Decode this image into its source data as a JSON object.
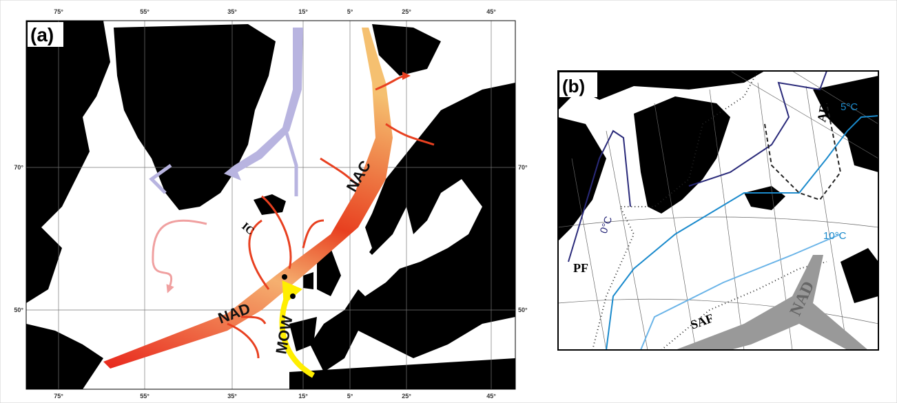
{
  "panel_a": {
    "label": "(a)",
    "longitudes": [
      "75°",
      "55°",
      "35°",
      "15°",
      "5°",
      "25°",
      "45°"
    ],
    "latitudes": [
      "70°",
      "50°"
    ],
    "currents": {
      "nac": "NAC",
      "nad": "NAD",
      "mow": "MOW",
      "ic": "IC"
    }
  },
  "panel_b": {
    "label": "(b)",
    "fronts": {
      "pf": "PF",
      "saf": "SAF",
      "af": "AF",
      "nad": "NAD"
    },
    "isotherms": {
      "zero": "0°C",
      "five": "5°C",
      "ten": "10°C"
    }
  }
}
